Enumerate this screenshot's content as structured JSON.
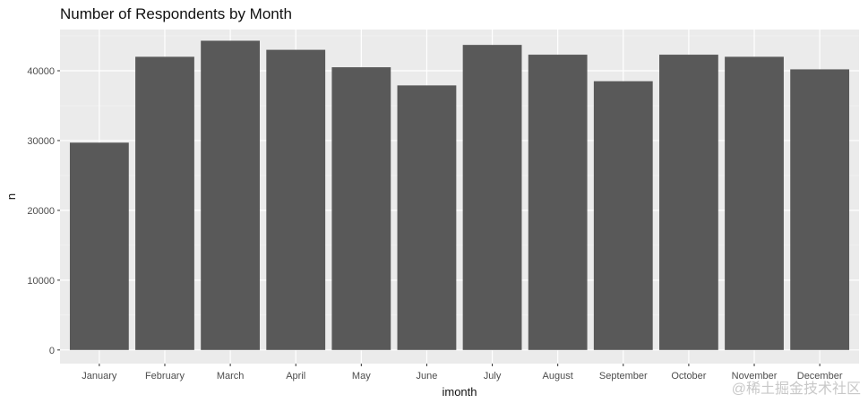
{
  "chart_data": {
    "type": "bar",
    "title": "Number of Respondents by Month",
    "xlabel": "imonth",
    "ylabel": "n",
    "categories": [
      "January",
      "February",
      "March",
      "April",
      "May",
      "June",
      "July",
      "August",
      "September",
      "October",
      "November",
      "December"
    ],
    "values": [
      29700,
      42000,
      44300,
      43000,
      40500,
      37900,
      43700,
      42300,
      38500,
      42300,
      42000,
      40200
    ],
    "ylim": [
      -1950,
      45900
    ],
    "yticks": [
      0,
      10000,
      20000,
      30000,
      40000
    ],
    "grid": true,
    "colors": {
      "bar": "#595959",
      "panel": "#ebebeb",
      "grid_major": "#ffffff",
      "grid_minor": "#f5f5f5",
      "text": "#4d4d4d"
    }
  },
  "watermark": "@稀土掘金技术社区"
}
